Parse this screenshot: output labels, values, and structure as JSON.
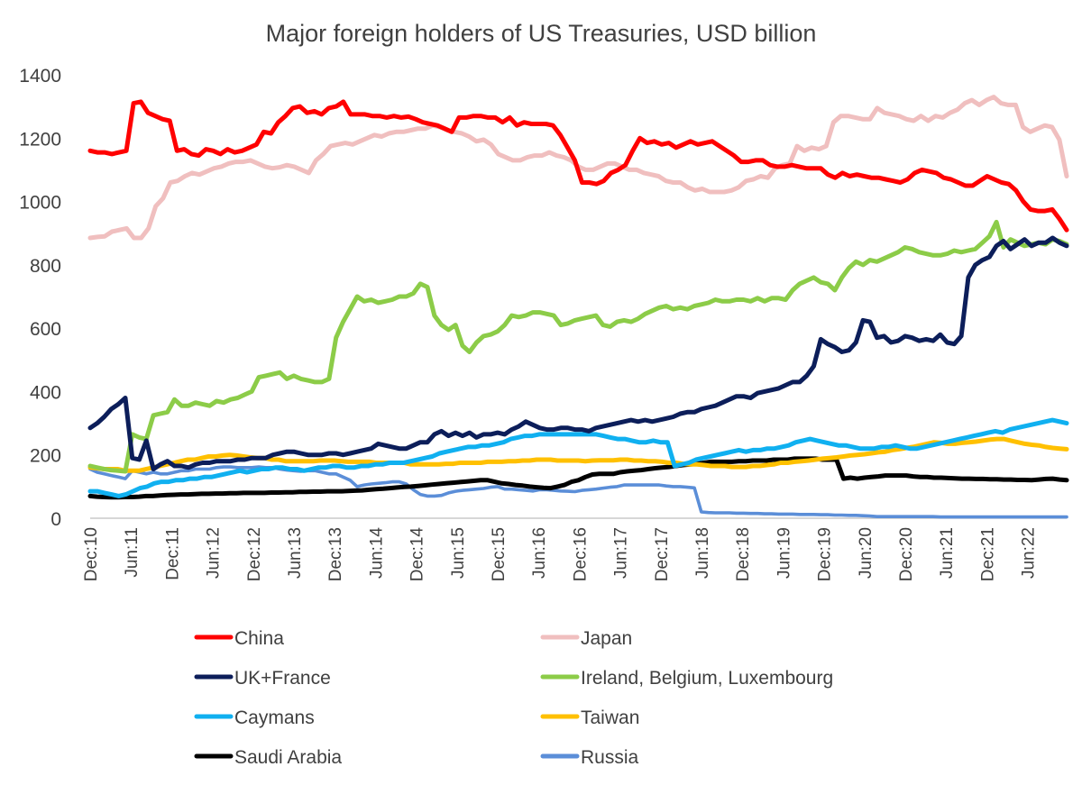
{
  "chart_data": {
    "type": "line",
    "title": "Major foreign holders of US Treasuries, USD billion",
    "xlabel": "",
    "ylabel": "",
    "ylim": [
      0,
      1400
    ],
    "yticks": [
      0,
      200,
      400,
      600,
      800,
      1000,
      1200,
      1400
    ],
    "grid": false,
    "legend_position": "bottom",
    "x_start": "Dec:10",
    "x_end": "Dec:22",
    "x_tick_labels": [
      "Dec:10",
      "Jun:11",
      "Dec:11",
      "Jun:12",
      "Dec:12",
      "Jun:13",
      "Dec:13",
      "Jun:14",
      "Dec:14",
      "Jun:15",
      "Dec:15",
      "Jun:16",
      "Dec:16",
      "Jun:17",
      "Dec:17",
      "Jun:18",
      "Dec:18",
      "Jun:19",
      "Dec:19",
      "Jun:20",
      "Dec:20",
      "Jun:21",
      "Dec:21",
      "Jun:22"
    ],
    "series": [
      {
        "name": "China",
        "color": "#ff0000",
        "values": [
          1160,
          1155,
          1155,
          1150,
          1155,
          1160,
          1310,
          1315,
          1280,
          1270,
          1260,
          1255,
          1160,
          1165,
          1150,
          1145,
          1165,
          1160,
          1150,
          1165,
          1155,
          1160,
          1170,
          1180,
          1220,
          1215,
          1250,
          1270,
          1295,
          1300,
          1280,
          1285,
          1275,
          1295,
          1300,
          1315,
          1275,
          1275,
          1275,
          1270,
          1270,
          1265,
          1270,
          1265,
          1268,
          1260,
          1250,
          1245,
          1240,
          1230,
          1220,
          1265,
          1265,
          1270,
          1270,
          1265,
          1265,
          1250,
          1265,
          1240,
          1250,
          1245,
          1245,
          1245,
          1240,
          1210,
          1170,
          1130,
          1060,
          1060,
          1055,
          1065,
          1090,
          1100,
          1115,
          1160,
          1200,
          1185,
          1190,
          1180,
          1185,
          1170,
          1180,
          1190,
          1180,
          1185,
          1190,
          1175,
          1160,
          1145,
          1125,
          1125,
          1130,
          1130,
          1115,
          1110,
          1110,
          1115,
          1110,
          1105,
          1105,
          1105,
          1085,
          1075,
          1090,
          1080,
          1085,
          1080,
          1075,
          1075,
          1070,
          1065,
          1060,
          1070,
          1090,
          1100,
          1095,
          1090,
          1075,
          1070,
          1060,
          1050,
          1050,
          1065,
          1080,
          1070,
          1060,
          1055,
          1035,
          1000,
          975,
          970,
          970,
          975,
          945,
          910
        ]
      },
      {
        "name": "Japan",
        "color": "#f0bfbf",
        "values": [
          885,
          888,
          890,
          905,
          910,
          915,
          885,
          885,
          915,
          985,
          1010,
          1060,
          1065,
          1080,
          1090,
          1085,
          1095,
          1105,
          1110,
          1120,
          1125,
          1125,
          1130,
          1120,
          1110,
          1105,
          1108,
          1115,
          1110,
          1100,
          1090,
          1130,
          1150,
          1175,
          1180,
          1185,
          1180,
          1190,
          1200,
          1210,
          1205,
          1215,
          1220,
          1220,
          1225,
          1230,
          1230,
          1240,
          1235,
          1225,
          1220,
          1215,
          1205,
          1190,
          1195,
          1180,
          1150,
          1140,
          1130,
          1130,
          1140,
          1145,
          1145,
          1155,
          1145,
          1140,
          1130,
          1110,
          1100,
          1100,
          1110,
          1120,
          1120,
          1110,
          1100,
          1100,
          1090,
          1085,
          1080,
          1065,
          1060,
          1060,
          1045,
          1035,
          1040,
          1030,
          1030,
          1030,
          1035,
          1045,
          1065,
          1070,
          1080,
          1075,
          1105,
          1115,
          1120,
          1175,
          1160,
          1170,
          1165,
          1175,
          1250,
          1270,
          1270,
          1265,
          1260,
          1260,
          1295,
          1280,
          1275,
          1270,
          1260,
          1255,
          1270,
          1255,
          1270,
          1265,
          1280,
          1290,
          1310,
          1320,
          1305,
          1320,
          1330,
          1310,
          1305,
          1305,
          1235,
          1220,
          1230,
          1240,
          1235,
          1195,
          1080
        ]
      },
      {
        "name": "UK+France",
        "color": "#0c1e5a",
        "values": [
          285,
          300,
          320,
          345,
          360,
          380,
          190,
          185,
          245,
          155,
          170,
          180,
          165,
          165,
          160,
          170,
          175,
          175,
          180,
          180,
          180,
          185,
          185,
          190,
          190,
          190,
          200,
          205,
          210,
          210,
          205,
          200,
          200,
          200,
          205,
          205,
          200,
          205,
          210,
          215,
          220,
          235,
          230,
          225,
          220,
          220,
          230,
          240,
          240,
          265,
          275,
          260,
          270,
          260,
          270,
          255,
          265,
          265,
          270,
          265,
          280,
          290,
          305,
          295,
          285,
          280,
          280,
          285,
          285,
          280,
          280,
          275,
          285,
          290,
          295,
          300,
          305,
          310,
          305,
          310,
          305,
          310,
          315,
          320,
          330,
          335,
          335,
          345,
          350,
          355,
          365,
          375,
          385,
          385,
          380,
          395,
          400,
          405,
          410,
          420,
          430,
          430,
          450,
          480,
          565,
          550,
          540,
          525,
          530,
          555,
          625,
          620,
          570,
          575,
          555,
          560,
          575,
          570,
          560,
          565,
          560,
          580,
          555,
          550,
          575,
          760,
          800,
          815,
          825,
          860,
          875,
          850,
          865,
          880,
          860,
          870,
          870,
          885,
          870,
          860
        ]
      },
      {
        "name": "Ireland, Belgium, Luxembourg",
        "color": "#8ccc48",
        "values": [
          165,
          160,
          155,
          152,
          150,
          148,
          265,
          255,
          250,
          325,
          330,
          335,
          375,
          355,
          355,
          365,
          360,
          355,
          370,
          365,
          375,
          380,
          390,
          400,
          445,
          450,
          455,
          460,
          440,
          450,
          440,
          435,
          430,
          430,
          440,
          570,
          620,
          660,
          700,
          685,
          690,
          680,
          685,
          690,
          700,
          700,
          710,
          740,
          730,
          640,
          610,
          595,
          610,
          545,
          525,
          555,
          575,
          580,
          590,
          610,
          640,
          635,
          640,
          650,
          650,
          645,
          640,
          610,
          615,
          625,
          630,
          635,
          640,
          610,
          605,
          620,
          625,
          620,
          630,
          645,
          655,
          665,
          670,
          660,
          665,
          660,
          670,
          675,
          680,
          690,
          685,
          685,
          690,
          690,
          685,
          695,
          685,
          695,
          695,
          690,
          720,
          740,
          750,
          760,
          745,
          740,
          720,
          760,
          790,
          810,
          800,
          815,
          810,
          820,
          830,
          840,
          855,
          850,
          840,
          835,
          830,
          830,
          835,
          845,
          840,
          845,
          850,
          870,
          890,
          935,
          855,
          880,
          870,
          860,
          865,
          870,
          865,
          880,
          875,
          865
        ]
      },
      {
        "name": "Caymans",
        "color": "#10b0f0",
        "values": [
          85,
          85,
          80,
          75,
          70,
          75,
          85,
          95,
          100,
          110,
          115,
          115,
          120,
          120,
          125,
          125,
          130,
          130,
          135,
          140,
          145,
          150,
          145,
          150,
          155,
          155,
          160,
          160,
          155,
          155,
          150,
          155,
          160,
          160,
          165,
          165,
          160,
          160,
          165,
          165,
          170,
          170,
          175,
          175,
          175,
          180,
          185,
          190,
          195,
          205,
          210,
          215,
          220,
          225,
          225,
          230,
          230,
          235,
          240,
          250,
          255,
          260,
          260,
          265,
          265,
          265,
          265,
          265,
          265,
          265,
          265,
          265,
          260,
          255,
          250,
          250,
          245,
          240,
          240,
          245,
          240,
          240,
          165,
          170,
          175,
          185,
          190,
          195,
          200,
          205,
          210,
          215,
          210,
          215,
          215,
          220,
          220,
          225,
          230,
          240,
          245,
          250,
          245,
          240,
          235,
          230,
          230,
          225,
          220,
          220,
          220,
          225,
          225,
          230,
          225,
          220,
          220,
          225,
          230,
          235,
          240,
          245,
          250,
          255,
          260,
          265,
          270,
          275,
          270,
          280,
          285,
          290,
          295,
          300,
          305,
          310,
          305,
          300
        ]
      },
      {
        "name": "Taiwan",
        "color": "#ffc000",
        "values": [
          160,
          158,
          155,
          155,
          155,
          150,
          150,
          150,
          155,
          160,
          165,
          170,
          175,
          180,
          185,
          185,
          190,
          195,
          195,
          198,
          200,
          198,
          195,
          192,
          190,
          190,
          185,
          185,
          180,
          180,
          180,
          180,
          180,
          182,
          182,
          182,
          180,
          178,
          178,
          178,
          178,
          175,
          175,
          175,
          175,
          175,
          170,
          170,
          170,
          170,
          170,
          172,
          172,
          175,
          175,
          175,
          175,
          178,
          178,
          178,
          180,
          180,
          182,
          182,
          185,
          185,
          185,
          182,
          182,
          182,
          182,
          180,
          182,
          183,
          183,
          183,
          185,
          185,
          182,
          182,
          180,
          180,
          178,
          175,
          175,
          172,
          170,
          170,
          168,
          165,
          165,
          165,
          162,
          162,
          162,
          165,
          165,
          168,
          170,
          175,
          175,
          178,
          180,
          182,
          185,
          188,
          190,
          192,
          195,
          198,
          200,
          202,
          205,
          208,
          210,
          215,
          218,
          222,
          225,
          230,
          235,
          240,
          238,
          235,
          235,
          238,
          240,
          242,
          245,
          248,
          250,
          250,
          245,
          240,
          235,
          232,
          230,
          225,
          222,
          220,
          218
        ]
      },
      {
        "name": "Saudi Arabia",
        "color": "#000000",
        "values": [
          70,
          68,
          67,
          66,
          66,
          67,
          67,
          68,
          70,
          70,
          72,
          73,
          74,
          75,
          75,
          76,
          77,
          77,
          78,
          78,
          79,
          79,
          80,
          80,
          80,
          80,
          81,
          81,
          82,
          82,
          83,
          83,
          84,
          84,
          85,
          85,
          85,
          86,
          87,
          88,
          90,
          92,
          93,
          95,
          97,
          99,
          100,
          102,
          104,
          106,
          108,
          110,
          112,
          114,
          116,
          118,
          120,
          120,
          115,
          110,
          108,
          105,
          103,
          100,
          98,
          96,
          95,
          100,
          105,
          115,
          120,
          130,
          138,
          140,
          140,
          140,
          145,
          148,
          150,
          152,
          155,
          158,
          160,
          162,
          165,
          168,
          170,
          172,
          175,
          178,
          178,
          178,
          178,
          180,
          180,
          182,
          182,
          182,
          185,
          185,
          185,
          188,
          188,
          188,
          188,
          185,
          185,
          185,
          125,
          128,
          125,
          128,
          130,
          132,
          135,
          135,
          135,
          135,
          132,
          130,
          130,
          128,
          128,
          127,
          126,
          125,
          125,
          124,
          124,
          123,
          123,
          122,
          122,
          121,
          121,
          120,
          122,
          124,
          125,
          122,
          120
        ]
      },
      {
        "name": "Russia",
        "color": "#5b8ed8",
        "values": [
          155,
          145,
          140,
          135,
          130,
          125,
          150,
          145,
          140,
          145,
          140,
          140,
          145,
          150,
          150,
          155,
          155,
          155,
          160,
          162,
          162,
          160,
          160,
          160,
          162,
          160,
          160,
          155,
          152,
          150,
          148,
          150,
          150,
          145,
          140,
          140,
          130,
          120,
          100,
          105,
          108,
          110,
          112,
          115,
          115,
          108,
          90,
          75,
          70,
          70,
          72,
          80,
          85,
          88,
          90,
          92,
          94,
          98,
          100,
          92,
          92,
          90,
          88,
          86,
          90,
          90,
          88,
          86,
          85,
          84,
          88,
          90,
          92,
          95,
          98,
          100,
          105,
          105,
          105,
          105,
          105,
          105,
          102,
          100,
          100,
          98,
          96,
          20,
          18,
          17,
          17,
          17,
          16,
          16,
          15,
          15,
          14,
          14,
          13,
          13,
          13,
          12,
          12,
          12,
          11,
          11,
          10,
          10,
          9,
          9,
          8,
          7,
          5,
          5,
          5,
          5,
          5,
          5,
          5,
          5,
          5,
          4,
          4,
          4,
          4,
          4,
          4,
          4,
          4,
          4,
          4,
          4,
          4,
          4,
          4,
          4,
          4,
          4,
          4,
          4
        ]
      }
    ]
  }
}
